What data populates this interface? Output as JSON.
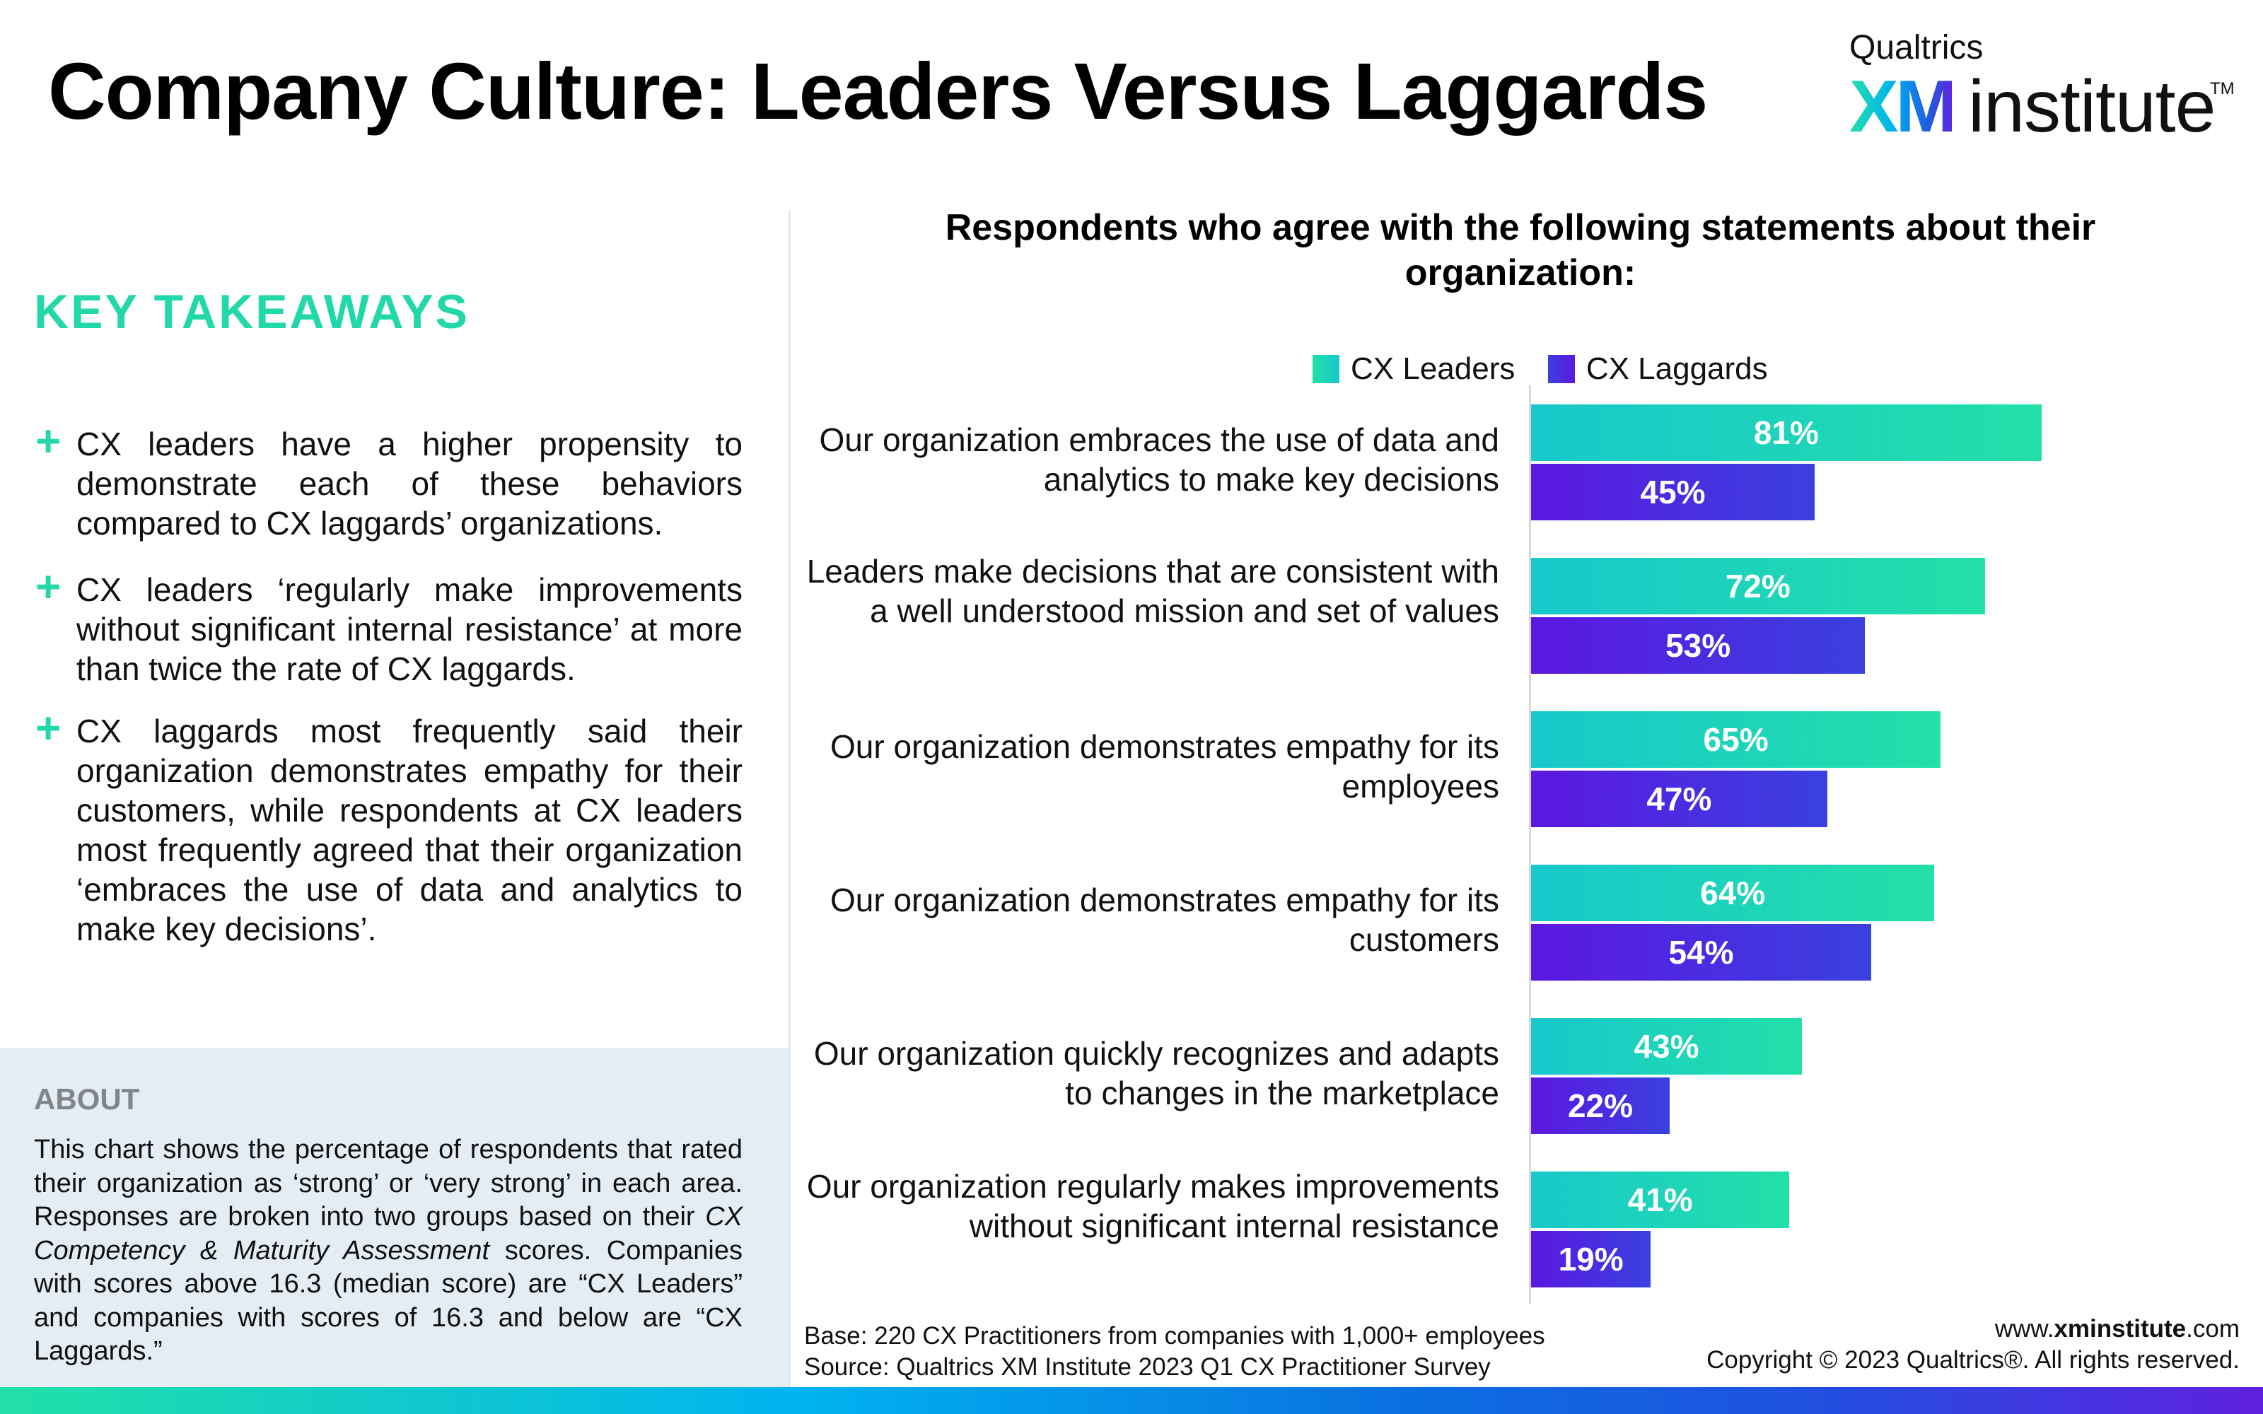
{
  "header": {
    "title": "Company Culture: Leaders Versus Laggards",
    "logo": {
      "top": "Qualtrics",
      "brand": "XM",
      "word": "institute",
      "tm": "TM"
    }
  },
  "key_takeaways": {
    "heading": "KEY TAKEAWAYS",
    "bullet_icon": "plus-icon",
    "items": [
      "CX leaders have a higher propensity to demonstrate each of these behaviors compared to CX laggards’ organizations.",
      "CX leaders ‘regularly make improvements without significant internal resistance’ at more than twice the rate of CX laggards.",
      "CX laggards most frequently said their organization demonstrates empathy for their customers, while respondents at CX leaders most frequently agreed that their organization ‘embraces the use of data and analytics to make key decisions’."
    ]
  },
  "about": {
    "heading": "ABOUT",
    "text_before": "This chart shows the percentage of respondents that rated their organization as ‘strong’ or ‘very strong’ in each area. Responses are broken into two groups based on their ",
    "text_italic": "CX Competency & Maturity Assessment",
    "text_after": " scores. Companies with scores above 16.3 (median score) are “CX Leaders” and companies with scores of 16.3 and below  are “CX Laggards.”"
  },
  "footer": {
    "base": "Base: 220 CX Practitioners from companies with 1,000+ employees",
    "source": "Source: Qualtrics XM Institute 2023 Q1 CX Practitioner Survey",
    "url_prefix": "www.",
    "url_bold": "xminstitute",
    "url_suffix": ".com",
    "copyright": "Copyright © 2023 Qualtrics®. All rights reserved."
  },
  "colors": {
    "accent_green": "#22d8a8",
    "leaders_start": "#18c8cc",
    "leaders_end": "#22e0a8",
    "laggards_start": "#5c18e0",
    "laggards_end": "#3a40e0",
    "about_bg": "#e4ecf4"
  },
  "chart_data": {
    "type": "bar",
    "orientation": "horizontal",
    "title": "Respondents who agree with the following statements about their organization:",
    "xlabel": "",
    "ylabel": "",
    "xlim": [
      0,
      100
    ],
    "grid": false,
    "legend_position": "top",
    "value_format": "percent",
    "categories": [
      "Our organization embraces the use of data and analytics to make key decisions",
      "Leaders make decisions that are consistent with a well understood mission and set of values",
      "Our organization demonstrates empathy for its employees",
      "Our organization demonstrates empathy for its customers",
      "Our organization quickly recognizes and adapts to changes in the marketplace",
      "Our organization regularly makes improvements without significant internal resistance"
    ],
    "series": [
      {
        "name": "CX Leaders",
        "values": [
          81,
          72,
          65,
          64,
          43,
          41
        ]
      },
      {
        "name": "CX Laggards",
        "values": [
          45,
          53,
          47,
          54,
          22,
          19
        ]
      }
    ]
  }
}
